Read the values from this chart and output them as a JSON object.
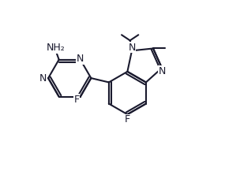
{
  "bg_color": "#ffffff",
  "bond_color": "#1a1a2e",
  "text_color": "#1a1a2e",
  "figsize": [
    2.85,
    2.36
  ],
  "dpi": 100,
  "xlim": [
    0,
    10
  ],
  "ylim": [
    0,
    10
  ],
  "lw": 1.5,
  "fontsize": 9
}
